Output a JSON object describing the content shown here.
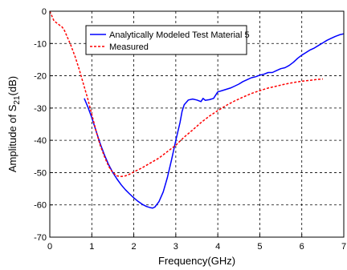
{
  "chart_data": {
    "type": "line",
    "xlabel": "Frequency(GHz)",
    "ylabel_main": "Amplitude of S",
    "ylabel_sub": "21",
    "ylabel_unit": "(dB)",
    "xlim": [
      0,
      7
    ],
    "ylim": [
      -70,
      0
    ],
    "x_ticks": [
      0,
      1,
      2,
      3,
      4,
      5,
      6,
      7
    ],
    "y_ticks": [
      0,
      -10,
      -20,
      -30,
      -40,
      -50,
      -60,
      -70
    ],
    "grid": true,
    "legend_position": "top",
    "series": [
      {
        "name": "Analytically Modeled Test Material 5",
        "color": "#0000ff",
        "style": "solid",
        "points": [
          [
            0.82,
            -27.0
          ],
          [
            0.9,
            -29.5
          ],
          [
            1.0,
            -33.0
          ],
          [
            1.1,
            -37.0
          ],
          [
            1.2,
            -41.0
          ],
          [
            1.3,
            -44.5
          ],
          [
            1.4,
            -47.5
          ],
          [
            1.5,
            -50.0
          ],
          [
            1.6,
            -52.0
          ],
          [
            1.7,
            -53.8
          ],
          [
            1.8,
            -55.3
          ],
          [
            1.9,
            -56.6
          ],
          [
            2.0,
            -57.8
          ],
          [
            2.1,
            -58.9
          ],
          [
            2.2,
            -59.8
          ],
          [
            2.3,
            -60.5
          ],
          [
            2.4,
            -60.9
          ],
          [
            2.45,
            -61.0
          ],
          [
            2.5,
            -60.7
          ],
          [
            2.6,
            -59.0
          ],
          [
            2.7,
            -56.0
          ],
          [
            2.8,
            -51.5
          ],
          [
            2.9,
            -46.0
          ],
          [
            3.0,
            -40.0
          ],
          [
            3.1,
            -34.5
          ],
          [
            3.15,
            -31.0
          ],
          [
            3.2,
            -29.0
          ],
          [
            3.3,
            -27.5
          ],
          [
            3.4,
            -27.2
          ],
          [
            3.5,
            -27.5
          ],
          [
            3.6,
            -28.0
          ],
          [
            3.65,
            -27.0
          ],
          [
            3.7,
            -27.6
          ],
          [
            3.8,
            -27.4
          ],
          [
            3.9,
            -27.0
          ],
          [
            3.95,
            -26.0
          ],
          [
            4.0,
            -25.0
          ],
          [
            4.1,
            -24.6
          ],
          [
            4.2,
            -24.2
          ],
          [
            4.3,
            -23.8
          ],
          [
            4.4,
            -23.2
          ],
          [
            4.5,
            -22.6
          ],
          [
            4.6,
            -21.8
          ],
          [
            4.7,
            -21.2
          ],
          [
            4.8,
            -20.6
          ],
          [
            4.9,
            -20.3
          ],
          [
            5.0,
            -19.8
          ],
          [
            5.1,
            -19.5
          ],
          [
            5.2,
            -19.0
          ],
          [
            5.3,
            -19.0
          ],
          [
            5.4,
            -18.4
          ],
          [
            5.5,
            -17.8
          ],
          [
            5.6,
            -17.5
          ],
          [
            5.7,
            -16.8
          ],
          [
            5.8,
            -15.8
          ],
          [
            5.9,
            -14.6
          ],
          [
            6.0,
            -13.6
          ],
          [
            6.1,
            -12.8
          ],
          [
            6.2,
            -12.0
          ],
          [
            6.3,
            -11.4
          ],
          [
            6.4,
            -10.6
          ],
          [
            6.5,
            -9.8
          ],
          [
            6.6,
            -9.0
          ],
          [
            6.7,
            -8.4
          ],
          [
            6.8,
            -7.8
          ],
          [
            6.9,
            -7.3
          ],
          [
            7.0,
            -7.0
          ]
        ]
      },
      {
        "name": "Measured",
        "color": "#ff0000",
        "style": "dashed",
        "points": [
          [
            0.0,
            0.0
          ],
          [
            0.05,
            -1.5
          ],
          [
            0.1,
            -3.0
          ],
          [
            0.2,
            -4.0
          ],
          [
            0.3,
            -5.0
          ],
          [
            0.35,
            -6.0
          ],
          [
            0.4,
            -7.5
          ],
          [
            0.5,
            -10.5
          ],
          [
            0.6,
            -14.0
          ],
          [
            0.7,
            -18.0
          ],
          [
            0.8,
            -22.5
          ],
          [
            0.9,
            -27.0
          ],
          [
            1.0,
            -32.0
          ],
          [
            1.1,
            -37.0
          ],
          [
            1.2,
            -41.5
          ],
          [
            1.3,
            -45.0
          ],
          [
            1.4,
            -48.0
          ],
          [
            1.5,
            -50.0
          ],
          [
            1.6,
            -51.0
          ],
          [
            1.7,
            -51.2
          ],
          [
            1.8,
            -51.0
          ],
          [
            1.9,
            -50.5
          ],
          [
            2.0,
            -49.8
          ],
          [
            2.2,
            -48.5
          ],
          [
            2.4,
            -47.0
          ],
          [
            2.6,
            -45.5
          ],
          [
            2.8,
            -43.5
          ],
          [
            3.0,
            -41.5
          ],
          [
            3.2,
            -39.0
          ],
          [
            3.4,
            -36.8
          ],
          [
            3.6,
            -34.5
          ],
          [
            3.8,
            -32.5
          ],
          [
            4.0,
            -30.8
          ],
          [
            4.2,
            -29.2
          ],
          [
            4.4,
            -27.8
          ],
          [
            4.6,
            -26.6
          ],
          [
            4.8,
            -25.5
          ],
          [
            5.0,
            -24.6
          ],
          [
            5.2,
            -23.8
          ],
          [
            5.4,
            -23.2
          ],
          [
            5.6,
            -22.6
          ],
          [
            5.8,
            -22.1
          ],
          [
            6.0,
            -21.7
          ],
          [
            6.2,
            -21.4
          ],
          [
            6.4,
            -21.1
          ],
          [
            6.5,
            -21.0
          ]
        ]
      }
    ]
  }
}
